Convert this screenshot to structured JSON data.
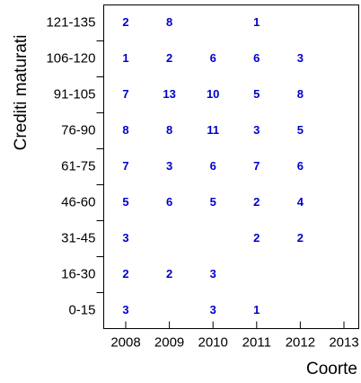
{
  "chart_data": {
    "type": "text-grid",
    "x_label": "Coorte",
    "y_label": "Crediti maturati",
    "x": [
      2008,
      2009,
      2010,
      2011,
      2012,
      2013
    ],
    "categories": [
      "121-135",
      "106-120",
      "91-105",
      "76-90",
      "61-75",
      "46-60",
      "31-45",
      "16-30",
      "0-15"
    ],
    "values": [
      [
        2,
        8,
        null,
        1,
        null,
        null
      ],
      [
        1,
        2,
        6,
        6,
        3,
        null
      ],
      [
        7,
        13,
        10,
        5,
        8,
        null
      ],
      [
        8,
        8,
        11,
        3,
        5,
        null
      ],
      [
        7,
        3,
        6,
        7,
        6,
        null
      ],
      [
        5,
        6,
        5,
        2,
        4,
        null
      ],
      [
        3,
        null,
        null,
        2,
        2,
        null
      ],
      [
        2,
        2,
        3,
        null,
        null,
        null
      ],
      [
        3,
        null,
        3,
        1,
        null,
        null
      ]
    ],
    "color": "#0000cc"
  }
}
